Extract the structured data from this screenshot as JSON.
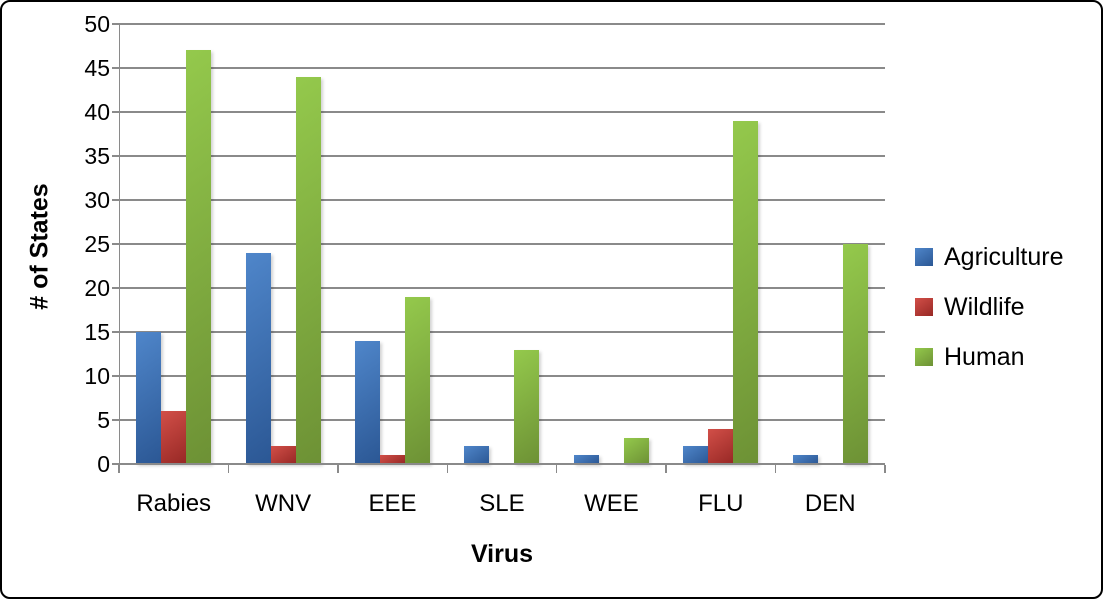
{
  "chart_data": {
    "type": "bar",
    "title": "",
    "xlabel": "Virus",
    "ylabel": "# of States",
    "categories": [
      "Rabies",
      "WNV",
      "EEE",
      "SLE",
      "WEE",
      "FLU",
      "DEN"
    ],
    "series": [
      {
        "name": "Agriculture",
        "color": "#3D74B8",
        "gradient": [
          "#4F86CA",
          "#2B5794"
        ],
        "values": [
          15,
          24,
          14,
          2,
          1,
          2,
          1
        ]
      },
      {
        "name": "Wildlife",
        "color": "#BE3B35",
        "gradient": [
          "#D24F48",
          "#972825"
        ],
        "values": [
          6,
          2,
          1,
          0,
          0,
          4,
          0
        ]
      },
      {
        "name": "Human",
        "color": "#82AE3F",
        "gradient": [
          "#94C94C",
          "#6D9135"
        ],
        "values": [
          47,
          44,
          19,
          13,
          3,
          39,
          25
        ]
      }
    ],
    "ylim": [
      0,
      50
    ],
    "yticks": [
      0,
      5,
      10,
      15,
      20,
      25,
      30,
      35,
      40,
      45,
      50
    ],
    "grid": true,
    "legend_position": "right",
    "colors": {
      "gridline": "#8a8a8a",
      "axis": "#8a8a8a",
      "border": "#000000",
      "background": "#FFFFFF",
      "text": "#000000"
    }
  }
}
